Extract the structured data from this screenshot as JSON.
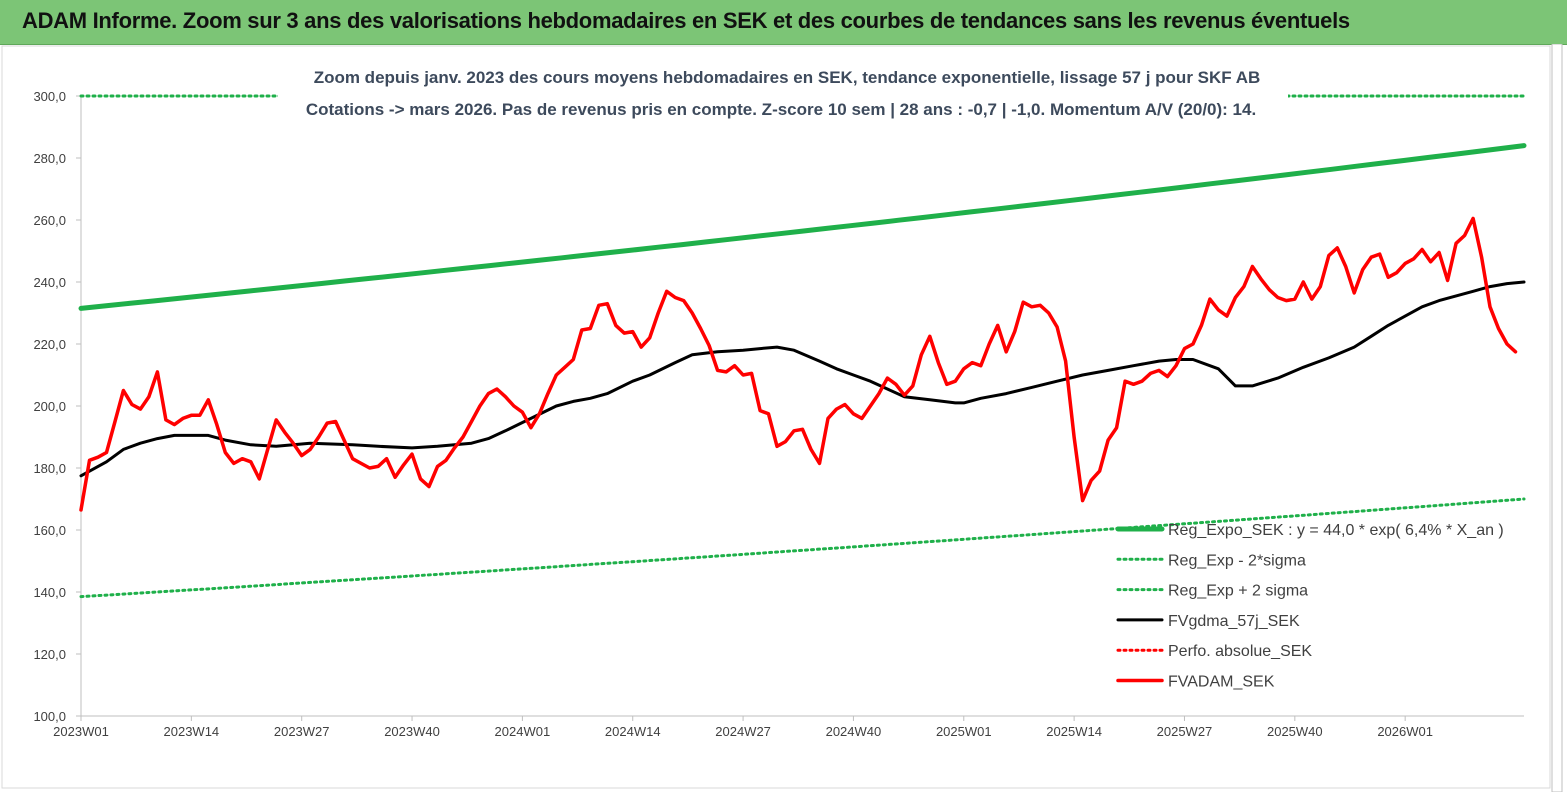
{
  "banner": {
    "title": "ADAM Informe. Zoom sur 3 ans des valorisations hebdomadaires en SEK et des courbes de tendances sans les revenus éventuels"
  },
  "chart_data": {
    "type": "line",
    "subtitle_line1": "Zoom depuis janv. 2023 des cours moyens hebdomadaires en SEK, tendance exponentielle, lissage 57 j pour SKF AB",
    "subtitle_line2": "Cotations -> mars 2026. Pas de revenus pris en compte. Z-score 10 sem | 28 ans : -0,7 | -1,0. Momentum A/V (20/0): 14.",
    "ylim": [
      100,
      300
    ],
    "yticks": [
      "100,0",
      "120,0",
      "140,0",
      "160,0",
      "180,0",
      "200,0",
      "220,0",
      "240,0",
      "260,0",
      "280,0",
      "300,0"
    ],
    "xticks": [
      "2023W01",
      "2023W14",
      "2023W27",
      "2023W40",
      "2024W01",
      "2024W14",
      "2024W27",
      "2024W40",
      "2025W01",
      "2025W14",
      "2025W27",
      "2025W40",
      "2026W01"
    ],
    "n_weeks": 170,
    "grid": false,
    "legend_position": "bottom-right",
    "series": [
      {
        "name": "Reg_Expo_SEK : y = 44,0 * exp( 6,4% *  X_an )",
        "color": "#1fb04a",
        "style": "solid-thick",
        "endpoints": [
          [
            0,
            231.5
          ],
          [
            170,
            284.0
          ]
        ],
        "curve": "exp"
      },
      {
        "name": "Reg_Exp - 2*sigma",
        "color": "#1fb04a",
        "style": "dotted",
        "endpoints": [
          [
            0,
            138.5
          ],
          [
            170,
            170.0
          ]
        ],
        "curve": "exp"
      },
      {
        "name": "Reg_Exp + 2 sigma",
        "color": "#1fb04a",
        "style": "dotted",
        "endpoints": [
          [
            0,
            300.0
          ],
          [
            170,
            300.0
          ]
        ],
        "curve": "linear"
      },
      {
        "name": "FVgdma_57j_SEK",
        "color": "#000000",
        "style": "solid",
        "points": [
          [
            0,
            177.5
          ],
          [
            3,
            182
          ],
          [
            5,
            186
          ],
          [
            7,
            188
          ],
          [
            9,
            189.5
          ],
          [
            11,
            190.5
          ],
          [
            15,
            190.5
          ],
          [
            17,
            189
          ],
          [
            20,
            187.5
          ],
          [
            23,
            187
          ],
          [
            27,
            188
          ],
          [
            32,
            187.5
          ],
          [
            35,
            187
          ],
          [
            39,
            186.5
          ],
          [
            42,
            187
          ],
          [
            46,
            188
          ],
          [
            48,
            189.5
          ],
          [
            50,
            192
          ],
          [
            53,
            196
          ],
          [
            56,
            200
          ],
          [
            58,
            201.5
          ],
          [
            60,
            202.5
          ],
          [
            62,
            204
          ],
          [
            65,
            208
          ],
          [
            67,
            210
          ],
          [
            70,
            214
          ],
          [
            72,
            216.5
          ],
          [
            75,
            217.5
          ],
          [
            78,
            218
          ],
          [
            80,
            218.5
          ],
          [
            82,
            219
          ],
          [
            84,
            218
          ],
          [
            87,
            214.5
          ],
          [
            89,
            212
          ],
          [
            91,
            210
          ],
          [
            93,
            208
          ],
          [
            95,
            205.5
          ],
          [
            97,
            203
          ],
          [
            100,
            202
          ],
          [
            103,
            201
          ],
          [
            104,
            201
          ],
          [
            106,
            202.5
          ],
          [
            109,
            204
          ],
          [
            112,
            206
          ],
          [
            115,
            208
          ],
          [
            118,
            210
          ],
          [
            121,
            211.5
          ],
          [
            124,
            213
          ],
          [
            127,
            214.5
          ],
          [
            129,
            215
          ],
          [
            131,
            215
          ],
          [
            134,
            212
          ],
          [
            136,
            206.5
          ],
          [
            138,
            206.5
          ],
          [
            141,
            209
          ],
          [
            144,
            212.5
          ],
          [
            147,
            215.5
          ],
          [
            150,
            219
          ],
          [
            152,
            222.5
          ],
          [
            154,
            226
          ],
          [
            156,
            229
          ],
          [
            158,
            232
          ],
          [
            160,
            234
          ],
          [
            162,
            235.5
          ],
          [
            164,
            237
          ],
          [
            166,
            238.5
          ],
          [
            168,
            239.5
          ],
          [
            170,
            240
          ]
        ]
      },
      {
        "name": "Perfo. absolue_SEK",
        "color": "#ff0000",
        "style": "dotted",
        "points": []
      },
      {
        "name": "FVADAM_SEK",
        "color": "#ff0000",
        "style": "solid-thick",
        "points": [
          [
            0,
            166.5
          ],
          [
            1,
            182.5
          ],
          [
            2,
            183.5
          ],
          [
            3,
            185
          ],
          [
            4,
            195
          ],
          [
            5,
            205
          ],
          [
            6,
            200.5
          ],
          [
            7,
            199
          ],
          [
            8,
            203
          ],
          [
            9,
            211
          ],
          [
            10,
            195.5
          ],
          [
            11,
            194
          ],
          [
            12,
            196
          ],
          [
            13,
            197
          ],
          [
            14,
            197
          ],
          [
            15,
            202
          ],
          [
            16,
            194
          ],
          [
            17,
            185
          ],
          [
            18,
            181.5
          ],
          [
            19,
            183
          ],
          [
            20,
            182
          ],
          [
            21,
            176.5
          ],
          [
            22,
            186
          ],
          [
            23,
            195.5
          ],
          [
            24,
            191.5
          ],
          [
            25,
            188
          ],
          [
            26,
            184
          ],
          [
            27,
            186
          ],
          [
            28,
            190
          ],
          [
            29,
            194.5
          ],
          [
            30,
            195
          ],
          [
            31,
            189
          ],
          [
            32,
            183
          ],
          [
            33,
            181.5
          ],
          [
            34,
            180
          ],
          [
            35,
            180.5
          ],
          [
            36,
            183
          ],
          [
            37,
            177
          ],
          [
            38,
            181
          ],
          [
            39,
            184.5
          ],
          [
            40,
            176.5
          ],
          [
            41,
            174
          ],
          [
            42,
            180.5
          ],
          [
            43,
            182.5
          ],
          [
            44,
            186.5
          ],
          [
            45,
            190
          ],
          [
            46,
            195
          ],
          [
            47,
            200
          ],
          [
            48,
            204
          ],
          [
            49,
            205.5
          ],
          [
            50,
            203
          ],
          [
            51,
            200
          ],
          [
            52,
            198
          ],
          [
            53,
            193
          ],
          [
            54,
            197.5
          ],
          [
            55,
            204
          ],
          [
            56,
            210
          ],
          [
            57,
            212.5
          ],
          [
            58,
            215
          ],
          [
            59,
            224.5
          ],
          [
            60,
            225
          ],
          [
            61,
            232.5
          ],
          [
            62,
            233
          ],
          [
            63,
            226
          ],
          [
            64,
            223.5
          ],
          [
            65,
            224
          ],
          [
            66,
            219
          ],
          [
            67,
            222
          ],
          [
            68,
            230
          ],
          [
            69,
            237
          ],
          [
            70,
            235
          ],
          [
            71,
            234
          ],
          [
            72,
            230
          ],
          [
            73,
            225
          ],
          [
            74,
            219.5
          ],
          [
            75,
            211.5
          ],
          [
            76,
            211
          ],
          [
            77,
            213
          ],
          [
            78,
            210
          ],
          [
            79,
            210.5
          ],
          [
            80,
            198.5
          ],
          [
            81,
            197.5
          ],
          [
            82,
            187
          ],
          [
            83,
            188.5
          ],
          [
            84,
            192
          ],
          [
            85,
            192.5
          ],
          [
            86,
            186
          ],
          [
            87,
            181.5
          ],
          [
            88,
            196
          ],
          [
            89,
            199
          ],
          [
            90,
            200.5
          ],
          [
            91,
            197.5
          ],
          [
            92,
            196
          ],
          [
            93,
            200
          ],
          [
            94,
            204
          ],
          [
            95,
            209
          ],
          [
            96,
            207
          ],
          [
            97,
            203.5
          ],
          [
            98,
            206.5
          ],
          [
            99,
            216.5
          ],
          [
            100,
            222.5
          ],
          [
            101,
            214
          ],
          [
            102,
            207
          ],
          [
            103,
            208
          ],
          [
            104,
            212
          ],
          [
            105,
            214
          ],
          [
            106,
            213
          ],
          [
            107,
            220
          ],
          [
            108,
            226
          ],
          [
            109,
            217.5
          ],
          [
            110,
            224
          ],
          [
            111,
            233.5
          ],
          [
            112,
            232
          ],
          [
            113,
            232.5
          ],
          [
            114,
            230
          ],
          [
            115,
            225.5
          ],
          [
            116,
            214.5
          ],
          [
            117,
            190
          ],
          [
            118,
            169.5
          ],
          [
            119,
            176
          ],
          [
            120,
            179
          ],
          [
            121,
            189
          ],
          [
            122,
            193
          ],
          [
            123,
            208
          ],
          [
            124,
            207
          ],
          [
            125,
            208
          ],
          [
            126,
            210.5
          ],
          [
            127,
            211.5
          ],
          [
            128,
            209.5
          ],
          [
            129,
            213
          ],
          [
            130,
            218.5
          ],
          [
            131,
            220
          ],
          [
            132,
            226
          ],
          [
            133,
            234.5
          ],
          [
            134,
            231
          ],
          [
            135,
            229
          ],
          [
            136,
            235
          ],
          [
            137,
            238.5
          ],
          [
            138,
            245
          ],
          [
            139,
            241
          ],
          [
            140,
            237.5
          ],
          [
            141,
            235
          ],
          [
            142,
            234
          ],
          [
            143,
            234.5
          ],
          [
            144,
            240
          ],
          [
            145,
            234.5
          ],
          [
            146,
            238.5
          ],
          [
            147,
            248.5
          ],
          [
            148,
            251
          ],
          [
            149,
            245
          ],
          [
            150,
            236.5
          ],
          [
            151,
            244
          ],
          [
            152,
            248
          ],
          [
            153,
            249
          ],
          [
            154,
            241.5
          ],
          [
            155,
            243
          ],
          [
            156,
            246
          ],
          [
            157,
            247.5
          ],
          [
            158,
            250.5
          ],
          [
            159,
            246.5
          ],
          [
            160,
            249.5
          ],
          [
            161,
            240.5
          ],
          [
            162,
            252.5
          ],
          [
            163,
            255
          ],
          [
            164,
            260.5
          ],
          [
            165,
            248
          ],
          [
            166,
            232
          ],
          [
            167,
            225
          ],
          [
            168,
            220
          ],
          [
            169,
            217.5
          ]
        ]
      }
    ]
  }
}
